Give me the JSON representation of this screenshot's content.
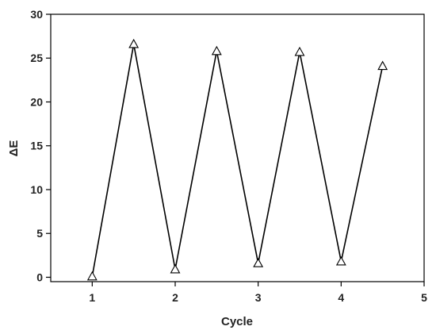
{
  "chart_data": {
    "type": "line",
    "xlabel": "Cycle",
    "ylabel": "ΔE",
    "xlim": [
      0.5,
      5
    ],
    "ylim": [
      -0.5,
      30
    ],
    "xticks": [
      1,
      2,
      3,
      4,
      5
    ],
    "yticks": [
      0,
      5,
      10,
      15,
      20,
      25,
      30
    ],
    "grid": false,
    "legend": "none",
    "marker": "open-triangle",
    "line_color": "#000000",
    "series": [
      {
        "x": [
          1,
          1.5,
          2,
          2.5,
          3,
          3.5,
          4,
          4.5
        ],
        "y": [
          0.1,
          26.6,
          0.9,
          25.8,
          1.6,
          25.7,
          1.8,
          24.1
        ]
      }
    ]
  }
}
